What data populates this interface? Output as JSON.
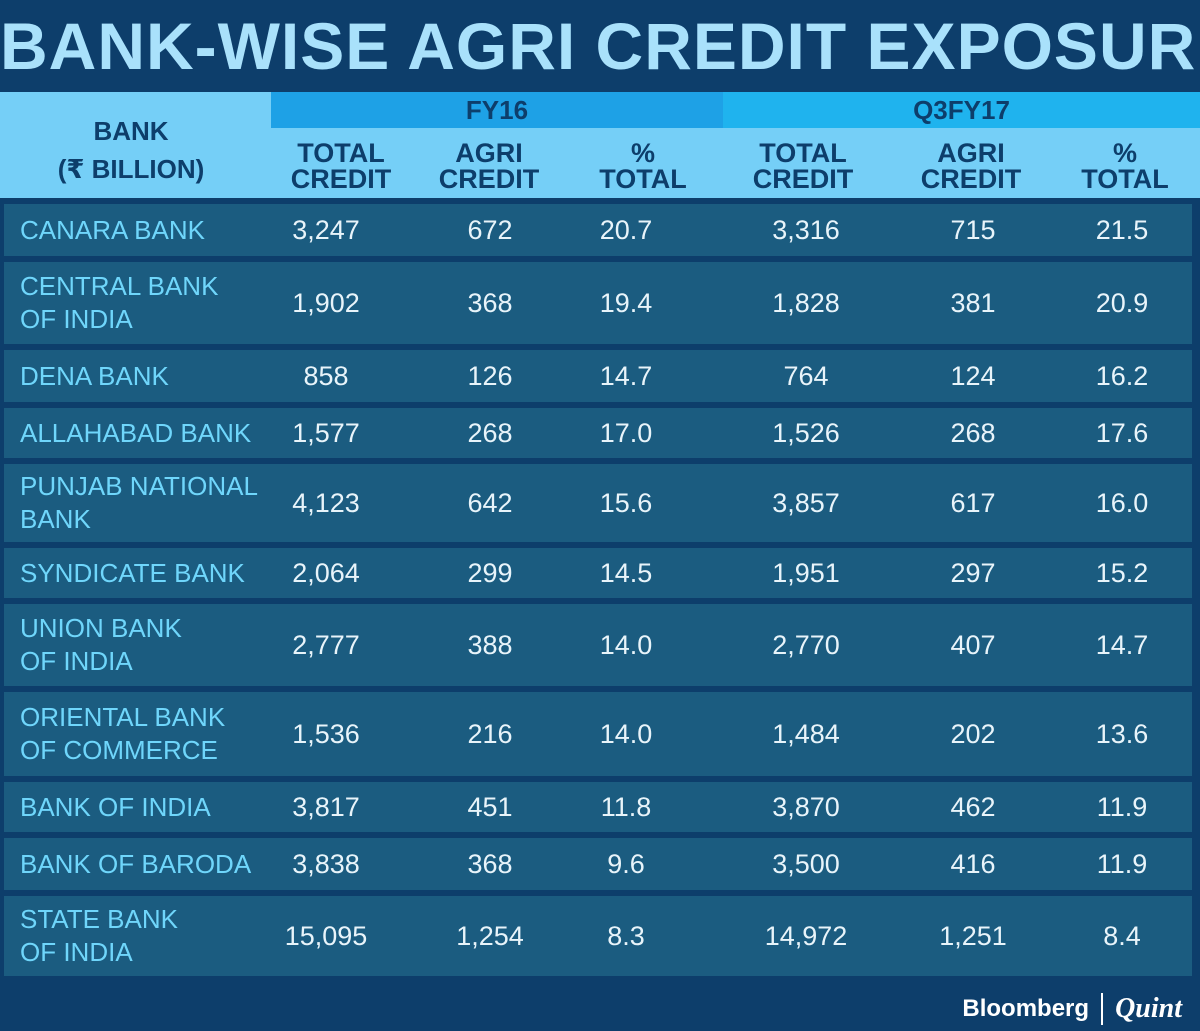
{
  "chart_data": {
    "type": "table",
    "title": "BANK-WISE AGRI CREDIT EXPOSURE",
    "row_header": "BANK\n(₹ BILLION)",
    "periods": [
      "FY16",
      "Q3FY17"
    ],
    "columns": [
      {
        "period": "FY16",
        "label": [
          "TOTAL",
          "CREDIT"
        ]
      },
      {
        "period": "FY16",
        "label": [
          "AGRI",
          "CREDIT"
        ]
      },
      {
        "period": "FY16",
        "label": [
          "%",
          "TOTAL"
        ]
      },
      {
        "period": "Q3FY17",
        "label": [
          "TOTAL",
          "CREDIT"
        ]
      },
      {
        "period": "Q3FY17",
        "label": [
          "AGRI",
          "CREDIT"
        ]
      },
      {
        "period": "Q3FY17",
        "label": [
          "%",
          "TOTAL"
        ]
      }
    ],
    "rows": [
      {
        "bank": "CANARA BANK",
        "values": [
          "3,247",
          "672",
          "20.7",
          "3,316",
          "715",
          "21.5"
        ]
      },
      {
        "bank": "CENTRAL BANK\nOF INDIA",
        "values": [
          "1,902",
          "368",
          "19.4",
          "1,828",
          "381",
          "20.9"
        ]
      },
      {
        "bank": "DENA BANK",
        "values": [
          "858",
          "126",
          "14.7",
          "764",
          "124",
          "16.2"
        ]
      },
      {
        "bank": "ALLAHABAD BANK",
        "values": [
          "1,577",
          "268",
          "17.0",
          "1,526",
          "268",
          "17.6"
        ]
      },
      {
        "bank": "PUNJAB NATIONAL\nBANK",
        "values": [
          "4,123",
          "642",
          "15.6",
          "3,857",
          "617",
          "16.0"
        ]
      },
      {
        "bank": "SYNDICATE BANK",
        "values": [
          "2,064",
          "299",
          "14.5",
          "1,951",
          "297",
          "15.2"
        ]
      },
      {
        "bank": "UNION BANK\nOF INDIA",
        "values": [
          "2,777",
          "388",
          "14.0",
          "2,770",
          "407",
          "14.7"
        ]
      },
      {
        "bank": "ORIENTAL BANK\nOF COMMERCE",
        "values": [
          "1,536",
          "216",
          "14.0",
          "1,484",
          "202",
          "13.6"
        ]
      },
      {
        "bank": "BANK OF INDIA",
        "values": [
          "3,817",
          "451",
          "11.8",
          "3,870",
          "462",
          "11.9"
        ]
      },
      {
        "bank": "BANK OF BARODA",
        "values": [
          "3,838",
          "368",
          "9.6",
          "3,500",
          "416",
          "11.9"
        ]
      },
      {
        "bank": "STATE BANK\nOF INDIA",
        "values": [
          "15,095",
          "1,254",
          "8.3",
          "14,972",
          "1,251",
          "8.4"
        ]
      }
    ]
  },
  "footer": {
    "brand_left": "Bloomberg",
    "brand_right": "Quint"
  },
  "colors": {
    "background": "#0d3e6b",
    "title": "#a9e1fb",
    "header_band": "#75cff7",
    "fy16_band": "#1ea1e6",
    "q3fy17_band": "#1fb3ee",
    "row_band": "#1b5c80",
    "bank_name": "#6fd6fb",
    "value_text": "#e8f4fa"
  }
}
